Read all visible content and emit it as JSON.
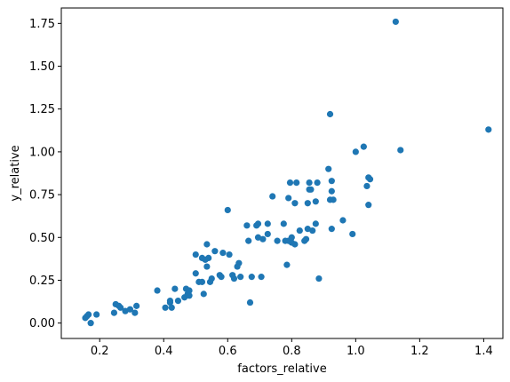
{
  "chart_data": {
    "type": "scatter",
    "title": "",
    "xlabel": "factors_relative",
    "ylabel": "y_relative",
    "xlim": [
      0.08,
      1.46
    ],
    "ylim": [
      -0.09,
      1.84
    ],
    "x_ticks": [
      0.2,
      0.4,
      0.6,
      0.8,
      1.0,
      1.2,
      1.4
    ],
    "x_tick_labels": [
      "0.2",
      "0.4",
      "0.6",
      "0.8",
      "1.0",
      "1.2",
      "1.4"
    ],
    "y_ticks": [
      0.0,
      0.25,
      0.5,
      0.75,
      1.0,
      1.25,
      1.5,
      1.75
    ],
    "y_tick_labels": [
      "0.00",
      "0.25",
      "0.50",
      "0.75",
      "1.00",
      "1.25",
      "1.50",
      "1.75"
    ],
    "grid": false,
    "marker_color": "#1f77b4",
    "points": [
      [
        0.155,
        0.03
      ],
      [
        0.16,
        0.04
      ],
      [
        0.165,
        0.05
      ],
      [
        0.172,
        0.0
      ],
      [
        0.19,
        0.05
      ],
      [
        0.245,
        0.06
      ],
      [
        0.25,
        0.11
      ],
      [
        0.26,
        0.1
      ],
      [
        0.265,
        0.09
      ],
      [
        0.28,
        0.07
      ],
      [
        0.295,
        0.08
      ],
      [
        0.31,
        0.06
      ],
      [
        0.315,
        0.1
      ],
      [
        0.38,
        0.19
      ],
      [
        0.405,
        0.09
      ],
      [
        0.42,
        0.12
      ],
      [
        0.42,
        0.13
      ],
      [
        0.425,
        0.09
      ],
      [
        0.435,
        0.2
      ],
      [
        0.445,
        0.13
      ],
      [
        0.465,
        0.15
      ],
      [
        0.47,
        0.2
      ],
      [
        0.475,
        0.17
      ],
      [
        0.48,
        0.19
      ],
      [
        0.48,
        0.16
      ],
      [
        0.5,
        0.29
      ],
      [
        0.5,
        0.4
      ],
      [
        0.51,
        0.24
      ],
      [
        0.52,
        0.24
      ],
      [
        0.52,
        0.38
      ],
      [
        0.525,
        0.17
      ],
      [
        0.53,
        0.37
      ],
      [
        0.535,
        0.33
      ],
      [
        0.535,
        0.46
      ],
      [
        0.54,
        0.38
      ],
      [
        0.545,
        0.24
      ],
      [
        0.55,
        0.26
      ],
      [
        0.56,
        0.42
      ],
      [
        0.575,
        0.28
      ],
      [
        0.58,
        0.27
      ],
      [
        0.585,
        0.41
      ],
      [
        0.6,
        0.66
      ],
      [
        0.605,
        0.4
      ],
      [
        0.615,
        0.28
      ],
      [
        0.62,
        0.26
      ],
      [
        0.63,
        0.33
      ],
      [
        0.635,
        0.35
      ],
      [
        0.64,
        0.27
      ],
      [
        0.66,
        0.57
      ],
      [
        0.665,
        0.48
      ],
      [
        0.67,
        0.12
      ],
      [
        0.675,
        0.27
      ],
      [
        0.69,
        0.57
      ],
      [
        0.695,
        0.58
      ],
      [
        0.695,
        0.5
      ],
      [
        0.705,
        0.27
      ],
      [
        0.71,
        0.49
      ],
      [
        0.725,
        0.58
      ],
      [
        0.725,
        0.52
      ],
      [
        0.74,
        0.74
      ],
      [
        0.755,
        0.48
      ],
      [
        0.775,
        0.58
      ],
      [
        0.78,
        0.48
      ],
      [
        0.785,
        0.34
      ],
      [
        0.79,
        0.48
      ],
      [
        0.79,
        0.73
      ],
      [
        0.795,
        0.82
      ],
      [
        0.8,
        0.47
      ],
      [
        0.8,
        0.5
      ],
      [
        0.81,
        0.46
      ],
      [
        0.81,
        0.7
      ],
      [
        0.815,
        0.82
      ],
      [
        0.825,
        0.54
      ],
      [
        0.84,
        0.48
      ],
      [
        0.845,
        0.49
      ],
      [
        0.85,
        0.55
      ],
      [
        0.85,
        0.7
      ],
      [
        0.855,
        0.78
      ],
      [
        0.855,
        0.82
      ],
      [
        0.86,
        0.78
      ],
      [
        0.865,
        0.54
      ],
      [
        0.875,
        0.71
      ],
      [
        0.875,
        0.58
      ],
      [
        0.88,
        0.82
      ],
      [
        0.885,
        0.26
      ],
      [
        0.915,
        0.9
      ],
      [
        0.92,
        0.72
      ],
      [
        0.92,
        1.22
      ],
      [
        0.925,
        0.77
      ],
      [
        0.925,
        0.83
      ],
      [
        0.925,
        0.55
      ],
      [
        0.93,
        0.72
      ],
      [
        0.96,
        0.6
      ],
      [
        0.99,
        0.52
      ],
      [
        1.0,
        1.0
      ],
      [
        1.025,
        1.03
      ],
      [
        1.035,
        0.8
      ],
      [
        1.04,
        0.85
      ],
      [
        1.04,
        0.69
      ],
      [
        1.045,
        0.84
      ],
      [
        1.125,
        1.76
      ],
      [
        1.14,
        1.01
      ],
      [
        1.415,
        1.13
      ]
    ]
  }
}
